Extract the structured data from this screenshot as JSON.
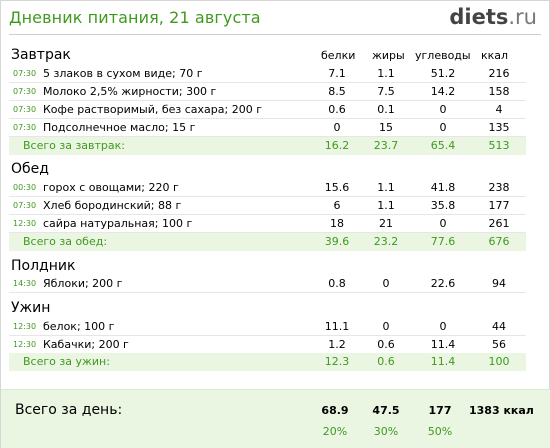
{
  "header": {
    "title": "Дневник питания, 21 августа",
    "logo_main": "diets",
    "logo_suffix": ".ru"
  },
  "columns": {
    "protein": "белки",
    "fat": "жиры",
    "carbs": "углеводы",
    "kcal": "ккал"
  },
  "sections": [
    {
      "label": "Завтрак",
      "items": [
        {
          "time": "07:30",
          "name": "5 злаков в сухом виде; 70 г",
          "protein": "7.1",
          "fat": "1.1",
          "carbs": "51.2",
          "kcal": "216"
        },
        {
          "time": "07:30",
          "name": "Молоко 2,5% жирности; 300 г",
          "protein": "8.5",
          "fat": "7.5",
          "carbs": "14.2",
          "kcal": "158"
        },
        {
          "time": "07:30",
          "name": "Кофе растворимый, без сахара; 200 г",
          "protein": "0.6",
          "fat": "0.1",
          "carbs": "0",
          "kcal": "4"
        },
        {
          "time": "07:30",
          "name": "Подсолнечное масло; 15 г",
          "protein": "0",
          "fat": "15",
          "carbs": "0",
          "kcal": "135"
        }
      ],
      "total": {
        "label": "Всего за завтрак:",
        "protein": "16.2",
        "fat": "23.7",
        "carbs": "65.4",
        "kcal": "513"
      }
    },
    {
      "label": "Обед",
      "items": [
        {
          "time": "00:30",
          "name": "горох с овощами; 220 г",
          "protein": "15.6",
          "fat": "1.1",
          "carbs": "41.8",
          "kcal": "238"
        },
        {
          "time": "07:30",
          "name": "Хлеб бородинский; 88 г",
          "protein": "6",
          "fat": "1.1",
          "carbs": "35.8",
          "kcal": "177"
        },
        {
          "time": "12:30",
          "name": "сайра натуральная; 100 г",
          "protein": "18",
          "fat": "21",
          "carbs": "0",
          "kcal": "261"
        }
      ],
      "total": {
        "label": "Всего за обед:",
        "protein": "39.6",
        "fat": "23.2",
        "carbs": "77.6",
        "kcal": "676"
      }
    },
    {
      "label": "Полдник",
      "items": [
        {
          "time": "14:30",
          "name": "Яблоки; 200 г",
          "protein": "0.8",
          "fat": "0",
          "carbs": "22.6",
          "kcal": "94"
        }
      ]
    },
    {
      "label": "Ужин",
      "items": [
        {
          "time": "12:30",
          "name": "белок; 100 г",
          "protein": "11.1",
          "fat": "0",
          "carbs": "0",
          "kcal": "44"
        },
        {
          "time": "12:30",
          "name": "Кабачки; 200 г",
          "protein": "1.2",
          "fat": "0.6",
          "carbs": "11.4",
          "kcal": "56"
        }
      ],
      "total": {
        "label": "Всего за ужин:",
        "protein": "12.3",
        "fat": "0.6",
        "carbs": "11.4",
        "kcal": "100"
      }
    }
  ],
  "day_total": {
    "label": "Всего за день:",
    "protein": "68.9",
    "fat": "47.5",
    "carbs": "177",
    "kcal": "1383 ккал",
    "protein_pct": "20%",
    "fat_pct": "30%",
    "carbs_pct": "50%"
  }
}
